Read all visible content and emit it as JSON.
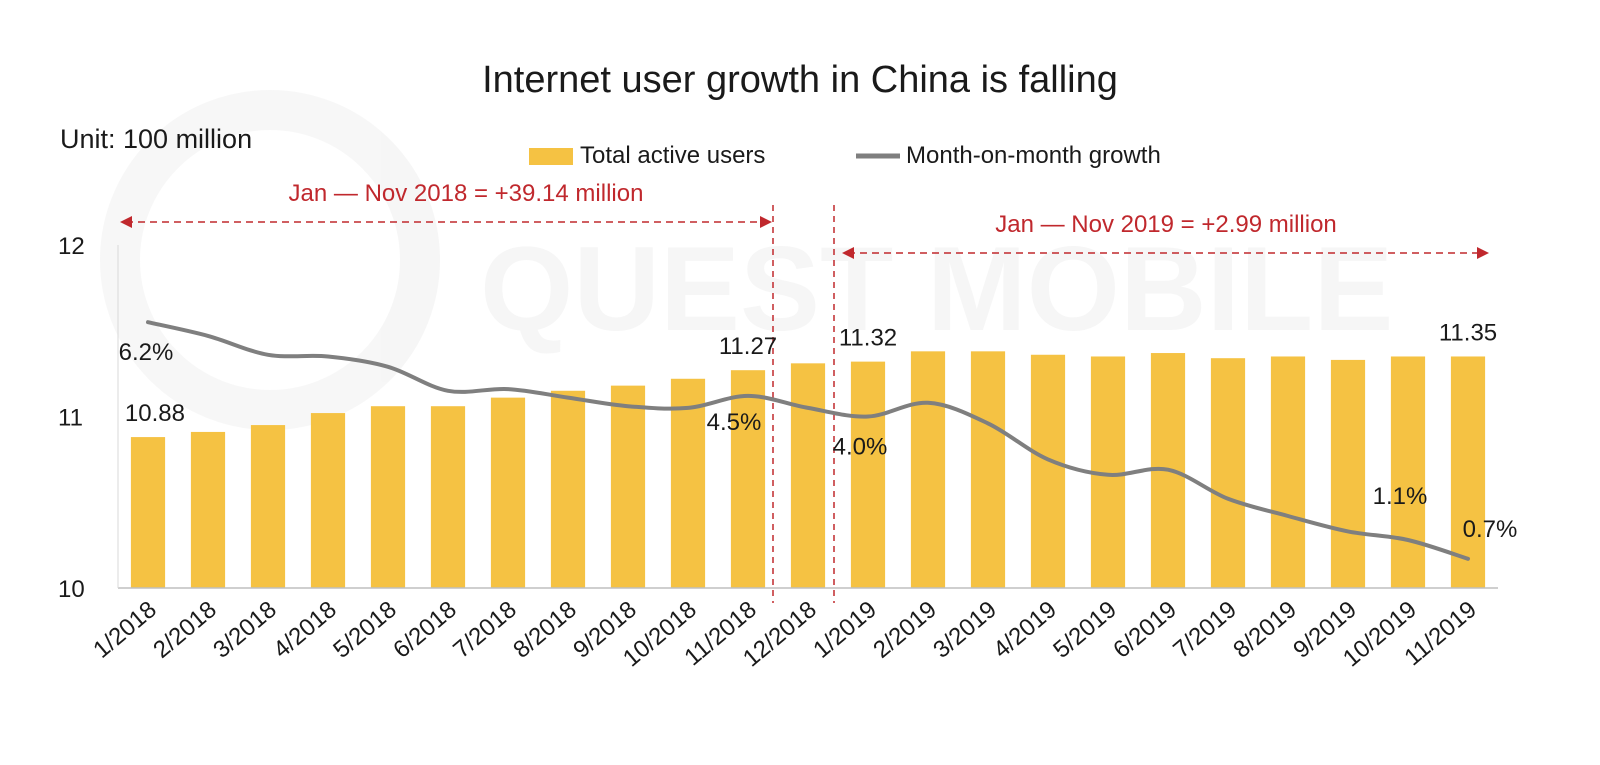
{
  "chart_data": {
    "type": "bar",
    "title": "Internet user growth in China is falling",
    "unit_label": "Unit: 100 million",
    "categories": [
      "1/2018",
      "2/2018",
      "3/2018",
      "4/2018",
      "5/2018",
      "6/2018",
      "7/2018",
      "8/2018",
      "9/2018",
      "10/2018",
      "11/2018",
      "12/2018",
      "1/2019",
      "2/2019",
      "3/2019",
      "4/2019",
      "5/2019",
      "6/2019",
      "7/2019",
      "8/2019",
      "9/2019",
      "10/2019",
      "11/2019"
    ],
    "series": [
      {
        "name": "Total active users",
        "kind": "bar",
        "color": "#F5C243",
        "values": [
          10.88,
          10.91,
          10.95,
          11.02,
          11.06,
          11.06,
          11.11,
          11.15,
          11.18,
          11.22,
          11.27,
          11.31,
          11.32,
          11.38,
          11.38,
          11.36,
          11.35,
          11.37,
          11.34,
          11.35,
          11.33,
          11.35,
          11.35
        ]
      },
      {
        "name": "Month-on-month growth",
        "kind": "line",
        "color": "#7F7F7F",
        "values_on_axis": [
          11.55,
          11.47,
          11.36,
          11.35,
          11.29,
          11.15,
          11.16,
          11.11,
          11.06,
          11.05,
          11.12,
          11.05,
          11.0,
          11.08,
          10.96,
          10.75,
          10.66,
          10.69,
          10.52,
          10.42,
          10.33,
          10.28,
          10.17
        ]
      }
    ],
    "ylim": [
      10,
      12
    ],
    "yticks": [
      "10",
      "11",
      "12"
    ],
    "bar_labels": [
      {
        "index": 0,
        "text": "10.88"
      },
      {
        "index": 10,
        "text": "11.27"
      },
      {
        "index": 12,
        "text": "11.32"
      },
      {
        "index": 22,
        "text": "11.35"
      }
    ],
    "growth_labels": [
      {
        "index": 0,
        "text": "6.2%"
      },
      {
        "index": 10,
        "text": "4.5%"
      },
      {
        "index": 12,
        "text": "4.0%"
      },
      {
        "index": 21,
        "text": "1.1%"
      },
      {
        "index": 22,
        "text": "0.7%"
      }
    ],
    "annotations": {
      "range_2018": "Jan — Nov 2018 = +39.14 million",
      "range_2019": "Jan — Nov 2019 = +2.99 million",
      "color": "#C0282D"
    },
    "legend_position": "top-center",
    "grid": false
  },
  "watermark": "QUEST MOBILE"
}
